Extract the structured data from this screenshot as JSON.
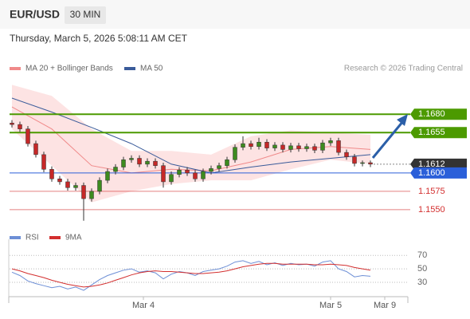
{
  "header": {
    "symbol": "EUR/USD",
    "interval": "30 MIN",
    "timestamp": "Thursday, March 5, 2026 5:08:11 AM CET"
  },
  "chart_data": [
    {
      "type": "candlestick",
      "annotation": "Research © 2026 Trading Central",
      "xlim": [
        -0.3,
        49.7
      ],
      "ylim": [
        1.1526,
        1.1727
      ],
      "xticks": [
        {
          "value": 16.5,
          "label": "Mar 4"
        },
        {
          "value": 40,
          "label": "Mar 5"
        },
        {
          "value": 46.8,
          "label": "Mar 9"
        }
      ],
      "candles": {
        "up_color": "#3d8b1f",
        "down_color": "#c62828",
        "open": [
          1.1668,
          1.1666,
          1.166,
          1.164,
          1.1625,
          1.1605,
          1.1592,
          1.1588,
          1.158,
          1.1583,
          1.1565,
          1.1575,
          1.159,
          1.1602,
          1.1608,
          1.1618,
          1.162,
          1.1612,
          1.1616,
          1.161,
          1.1588,
          1.1598,
          1.1604,
          1.16,
          1.1592,
          1.1602,
          1.1606,
          1.161,
          1.1618,
          1.1635,
          1.164,
          1.1636,
          1.1642,
          1.1634,
          1.1638,
          1.1632,
          1.1637,
          1.1633,
          1.1636,
          1.1631,
          1.1641,
          1.1644,
          1.1628,
          1.1622,
          1.1613,
          1.1614
        ],
        "high": [
          1.1672,
          1.167,
          1.1664,
          1.1644,
          1.1629,
          1.1609,
          1.1596,
          1.1592,
          1.1587,
          1.1587,
          1.1579,
          1.1594,
          1.1606,
          1.1612,
          1.1622,
          1.1624,
          1.1624,
          1.162,
          1.162,
          1.1614,
          1.1602,
          1.1608,
          1.1608,
          1.1604,
          1.1606,
          1.161,
          1.1614,
          1.1622,
          1.1639,
          1.165,
          1.1644,
          1.1648,
          1.1646,
          1.1642,
          1.1642,
          1.1641,
          1.1641,
          1.164,
          1.164,
          1.1645,
          1.1648,
          1.1648,
          1.1632,
          1.1626,
          1.1617,
          1.1617
        ],
        "low": [
          1.1662,
          1.1656,
          1.1636,
          1.1621,
          1.1601,
          1.1588,
          1.1584,
          1.1576,
          1.1576,
          1.1535,
          1.1561,
          1.1571,
          1.1586,
          1.1598,
          1.1604,
          1.1614,
          1.1608,
          1.1608,
          1.1606,
          1.158,
          1.1584,
          1.1594,
          1.1596,
          1.1588,
          1.1588,
          1.1598,
          1.1602,
          1.1606,
          1.1614,
          1.1631,
          1.1632,
          1.1632,
          1.163,
          1.163,
          1.1628,
          1.1628,
          1.1629,
          1.1629,
          1.1627,
          1.1627,
          1.1637,
          1.1624,
          1.1618,
          1.1609,
          1.1609,
          1.1608
        ],
        "close": [
          1.1666,
          1.166,
          1.164,
          1.1625,
          1.1605,
          1.1592,
          1.1588,
          1.158,
          1.1583,
          1.1565,
          1.1575,
          1.159,
          1.1602,
          1.1608,
          1.1618,
          1.162,
          1.1612,
          1.1616,
          1.161,
          1.1588,
          1.1598,
          1.1604,
          1.16,
          1.1592,
          1.1602,
          1.1606,
          1.161,
          1.1618,
          1.1635,
          1.164,
          1.1636,
          1.1642,
          1.1634,
          1.1638,
          1.1632,
          1.1637,
          1.1633,
          1.1636,
          1.1631,
          1.1641,
          1.1644,
          1.1628,
          1.1622,
          1.1613,
          1.1614,
          1.1612
        ]
      },
      "series": [
        {
          "name": "MA 20 + Bollinger Bands",
          "color": "#f08a8a",
          "band_color": "#fde3e3",
          "x": [
            0,
            5,
            10,
            15,
            20,
            25,
            30,
            35,
            40,
            45
          ],
          "values": [
            1.169,
            1.166,
            1.161,
            1.16,
            1.1605,
            1.1603,
            1.1615,
            1.1632,
            1.1636,
            1.1632
          ],
          "upper": [
            1.172,
            1.1705,
            1.166,
            1.163,
            1.163,
            1.1625,
            1.165,
            1.1658,
            1.1655,
            1.1652
          ],
          "lower": [
            1.166,
            1.161,
            1.156,
            1.1575,
            1.1585,
            1.159,
            1.159,
            1.1605,
            1.1618,
            1.1612
          ]
        },
        {
          "name": "MA 50",
          "color": "#3a5b9a",
          "x": [
            0,
            5,
            10,
            15,
            20,
            25,
            30,
            35,
            40,
            45
          ],
          "values": [
            1.1702,
            1.1683,
            1.1662,
            1.164,
            1.1612,
            1.16,
            1.1608,
            1.1615,
            1.162,
            1.1625
          ]
        }
      ],
      "levels": [
        {
          "value": 1.168,
          "label": "1.1680",
          "color": "#4c9a00",
          "label_style": "filled",
          "dashed": false
        },
        {
          "value": 1.1655,
          "label": "1.1655",
          "color": "#4c9a00",
          "label_style": "filled",
          "dashed": false
        },
        {
          "value": 1.1612,
          "label": "1.1612",
          "color": "#333333",
          "label_style": "filled",
          "dashed": true
        },
        {
          "value": 1.16,
          "label": "1.1600",
          "color": "#2b5fd9",
          "label_style": "filled",
          "dashed": false
        },
        {
          "value": 1.1575,
          "label": "1.1575",
          "color": "#d32f2f",
          "label_style": "text",
          "dashed": false
        },
        {
          "value": 1.155,
          "label": "1.1550",
          "color": "#d32f2f",
          "label_style": "text",
          "dashed": false
        }
      ]
    },
    {
      "type": "line",
      "xlim": [
        -0.3,
        49.7
      ],
      "ylim": [
        11,
        88
      ],
      "yticks": [
        30,
        50,
        70
      ],
      "grid": true,
      "series": [
        {
          "name": "RSI",
          "color": "#6d8fd6",
          "values": [
            45,
            40,
            32,
            28,
            25,
            22,
            24,
            20,
            23,
            18,
            26,
            34,
            40,
            44,
            48,
            50,
            45,
            47,
            44,
            35,
            42,
            46,
            44,
            40,
            46,
            48,
            50,
            54,
            60,
            62,
            58,
            61,
            56,
            59,
            55,
            58,
            56,
            57,
            54,
            60,
            62,
            50,
            46,
            38,
            40,
            39
          ]
        },
        {
          "name": "9MA",
          "color": "#d32f2f",
          "values": [
            50,
            47,
            43,
            40,
            37,
            33,
            30,
            27,
            25,
            23,
            24,
            26,
            29,
            33,
            37,
            41,
            44,
            46,
            47,
            46,
            46,
            45,
            44,
            43,
            43,
            44,
            45,
            47,
            50,
            53,
            55,
            57,
            58,
            58,
            57,
            57,
            57,
            57,
            56,
            56,
            57,
            56,
            55,
            52,
            50,
            48
          ]
        }
      ]
    }
  ]
}
